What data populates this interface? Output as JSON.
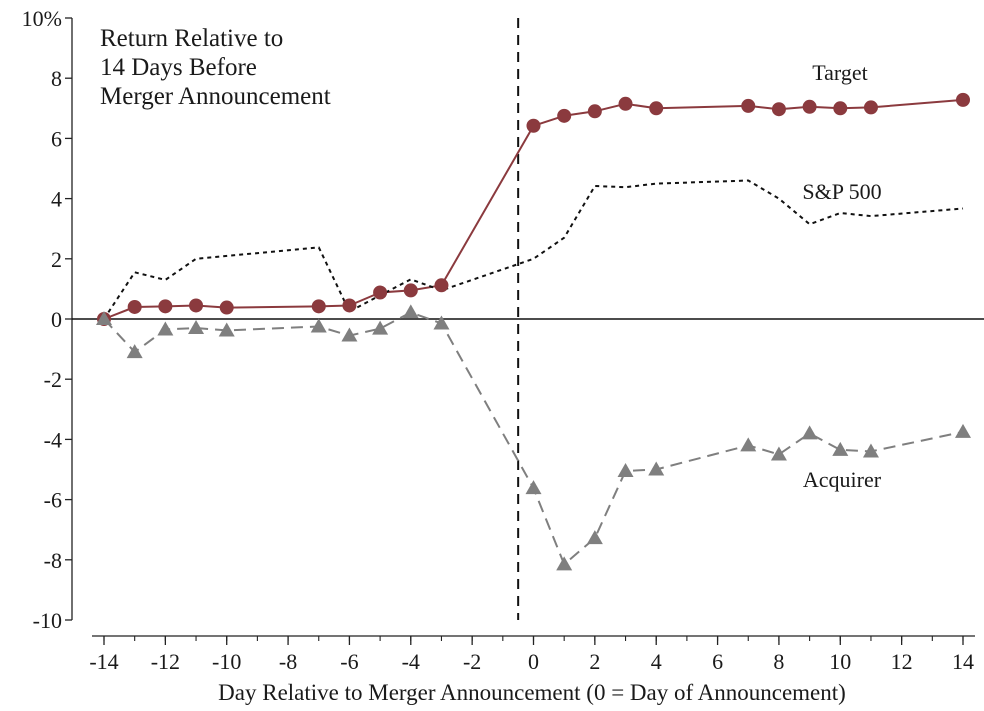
{
  "chart_data": {
    "type": "line",
    "title": "",
    "annotation_lines": [
      "Return Relative to",
      "14 Days Before",
      "Merger Announcement"
    ],
    "xlabel": "Day Relative to Merger Announcement (0 = Day of Announcement)",
    "ylabel": "",
    "xlim": [
      -14,
      14
    ],
    "ylim": [
      -10,
      10
    ],
    "x_ticks": [
      -14,
      -12,
      -10,
      -8,
      -6,
      -4,
      -2,
      0,
      2,
      4,
      6,
      8,
      10,
      12,
      14
    ],
    "y_ticks": [
      -10,
      -8,
      -6,
      -4,
      -2,
      0,
      2,
      4,
      6,
      8,
      10
    ],
    "y_tick_labels": [
      "-10",
      "-8",
      "-6",
      "-4",
      "-2",
      "0",
      "2",
      "4",
      "6",
      "8",
      "10%"
    ],
    "zero_line": true,
    "event_line_x": -0.5,
    "grid": false,
    "legend": "none",
    "series": [
      {
        "name": "Target",
        "color": "#8b3a3e",
        "marker": "circle",
        "line_style": "solid",
        "x": [
          -14,
          -13,
          -12,
          -11,
          -10,
          -7,
          -6,
          -5,
          -4,
          -3,
          0,
          1,
          2,
          3,
          4,
          7,
          8,
          9,
          10,
          11,
          14
        ],
        "y": [
          0.0,
          0.4,
          0.42,
          0.45,
          0.38,
          0.42,
          0.45,
          0.88,
          0.95,
          1.12,
          6.42,
          6.75,
          6.9,
          7.15,
          7.0,
          7.08,
          6.97,
          7.05,
          7.0,
          7.03,
          7.28
        ]
      },
      {
        "name": "S&P 500",
        "color": "#111111",
        "marker": "none",
        "line_style": "dotted",
        "x": [
          -14,
          -13,
          -12,
          -11,
          -7,
          -6,
          -4,
          -3,
          0,
          1,
          2,
          3,
          4,
          7,
          8,
          9,
          10,
          11,
          14
        ],
        "y": [
          0.0,
          1.55,
          1.3,
          2.0,
          2.38,
          0.25,
          1.32,
          0.95,
          2.0,
          2.7,
          4.42,
          4.38,
          4.5,
          4.6,
          4.0,
          3.15,
          3.52,
          3.42,
          3.67
        ]
      },
      {
        "name": "Acquirer",
        "color": "#7f7f7f",
        "marker": "triangle",
        "line_style": "dashed",
        "x": [
          -14,
          -13,
          -12,
          -11,
          -10,
          -7,
          -6,
          -5,
          -4,
          -3,
          0,
          1,
          2,
          3,
          4,
          7,
          8,
          9,
          10,
          11,
          14
        ],
        "y": [
          0.0,
          -1.1,
          -0.35,
          -0.3,
          -0.38,
          -0.25,
          -0.55,
          -0.32,
          0.22,
          -0.15,
          -5.62,
          -8.15,
          -7.28,
          -5.05,
          -5.0,
          -4.2,
          -4.5,
          -3.8,
          -4.35,
          -4.4,
          -3.75
        ]
      }
    ]
  }
}
